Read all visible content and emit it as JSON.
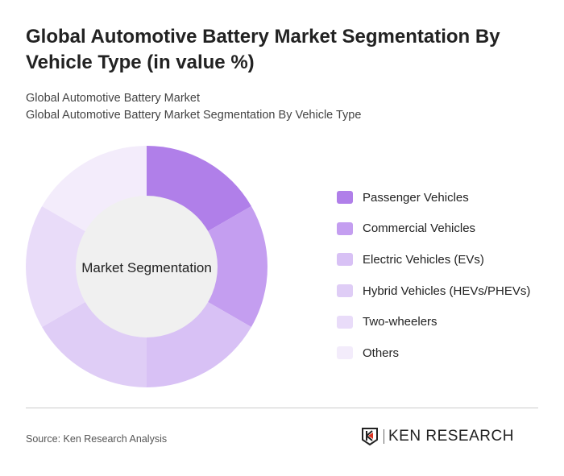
{
  "title": "Global Automotive Battery Market Segmentation By Vehicle Type (in value %)",
  "subtitle1": "Global Automotive Battery Market",
  "subtitle2": "Global Automotive Battery Market Segmentation By Vehicle Type",
  "source": "Source: Ken Research Analysis",
  "logo_text": "KEN RESEARCH",
  "chart_data": {
    "type": "pie",
    "donut": true,
    "center_label": "Market Segmentation",
    "categories": [
      "Passenger Vehicles",
      "Commercial Vehicles",
      "Electric Vehicles (EVs)",
      "Hybrid Vehicles (HEVs/PHEVs)",
      "Two-wheelers",
      "Others"
    ],
    "values": [
      16.67,
      16.67,
      16.67,
      16.67,
      16.67,
      16.67
    ],
    "colors": [
      "#b07fe9",
      "#c49ef0",
      "#d8c1f5",
      "#dfcdf6",
      "#e9dcf9",
      "#f3ecfb"
    ],
    "legend_position": "right"
  }
}
